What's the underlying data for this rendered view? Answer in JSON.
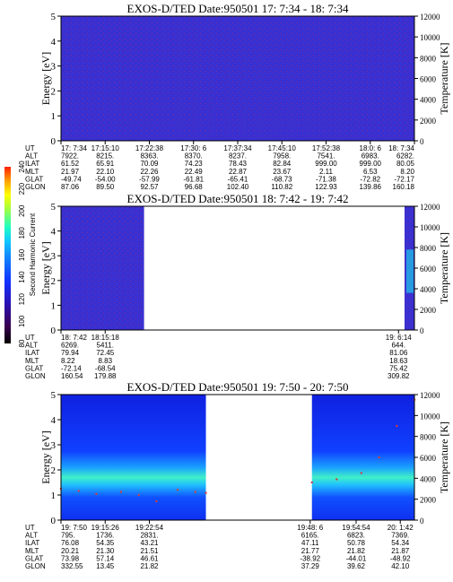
{
  "chart_data": [
    {
      "type": "heatmap",
      "title": "EXOS-D/TED   Date:950501  17: 7:34 - 18: 7:34",
      "ylabel": "Energy [eV]",
      "y2label": "Temperature [K]",
      "ylim": [
        0,
        5
      ],
      "y2lim": [
        0,
        12000
      ],
      "yticks": [
        "0",
        "1",
        "2",
        "3",
        "4",
        "5"
      ],
      "y2ticks": [
        "0",
        "2000",
        "4000",
        "6000",
        "8000",
        "10000",
        "12000"
      ],
      "segments": [
        [
          0,
          1
        ]
      ],
      "trace": [],
      "ephem_labels": [
        "UT",
        "ALT",
        "ILAT",
        "MLT",
        "GLAT",
        "GLON"
      ],
      "ephem_cols": [
        {
          "f": 0.0,
          "v": [
            "17: 7:34",
            "7922.",
            "61.52",
            "21.97",
            "-49.74",
            "87.06"
          ]
        },
        {
          "f": 0.125,
          "v": [
            "17:15:10",
            "8215.",
            "65.91",
            "22.10",
            "-54.00",
            "89.50"
          ]
        },
        {
          "f": 0.25,
          "v": [
            "17:22:38",
            "8363.",
            "70.09",
            "22.26",
            "-57.99",
            "92.57"
          ]
        },
        {
          "f": 0.375,
          "v": [
            "17:30: 6",
            "8370.",
            "74.23",
            "22.49",
            "-61.81",
            "96.68"
          ]
        },
        {
          "f": 0.5,
          "v": [
            "17:37:34",
            "8237.",
            "78.43",
            "22.87",
            "-65.41",
            "102.40"
          ]
        },
        {
          "f": 0.625,
          "v": [
            "17:45:10",
            "7958.",
            "82.84",
            "23.67",
            "-68.73",
            "110.82"
          ]
        },
        {
          "f": 0.75,
          "v": [
            "17:52:38",
            "7541.",
            "999.00",
            "2.11",
            "-71.38",
            "122.93"
          ]
        },
        {
          "f": 0.875,
          "v": [
            "18:0: 6",
            "6983.",
            "999.00",
            "6.53",
            "-72.82",
            "139.86"
          ]
        },
        {
          "f": 1.0,
          "v": [
            "18: 7:34",
            "6282.",
            "80.05",
            "8.20",
            "-72.17",
            "160.18"
          ]
        }
      ]
    },
    {
      "type": "heatmap",
      "title": "EXOS-D/TED   Date:950501  18: 7:42 - 19: 7:42",
      "ylabel": "Energy [eV]",
      "y2label": "Temperature [K]",
      "ylim": [
        0,
        5
      ],
      "y2lim": [
        0,
        12000
      ],
      "yticks": [
        "0",
        "1",
        "2",
        "3",
        "4",
        "5"
      ],
      "y2ticks": [
        "0",
        "2000",
        "4000",
        "6000",
        "8000",
        "10000",
        "12000"
      ],
      "segments": [
        [
          0,
          0.235
        ],
        [
          0.972,
          1
        ]
      ],
      "trace": [],
      "ephem_labels": [
        "UT",
        "ALT",
        "ILAT",
        "MLT",
        "GLAT",
        "GLON"
      ],
      "ephem_cols": [
        {
          "f": 0.0,
          "v": [
            "18: 7:42",
            "6269.",
            "79.94",
            "8.22",
            "-72.14",
            "160.54"
          ]
        },
        {
          "f": 0.125,
          "v": [
            "18:15:18",
            "5411.",
            "72.45",
            "8.83",
            "-68.54",
            "179.88"
          ]
        },
        {
          "f": 0.955,
          "v": [
            "19: 6:14",
            "644.",
            "81.06",
            "18.63",
            "75.42",
            "309.82"
          ]
        }
      ]
    },
    {
      "type": "heatmap",
      "title": "EXOS-D/TED   Date:950501  19: 7:50 - 20: 7:50",
      "ylabel": "Energy [eV]",
      "y2label": "Temperature [K]",
      "ylim": [
        0,
        5
      ],
      "y2lim": [
        0,
        12000
      ],
      "yticks": [
        "0",
        "1",
        "2",
        "3",
        "4",
        "5"
      ],
      "y2ticks": [
        "0",
        "2000",
        "4000",
        "6000",
        "8000",
        "10000",
        "12000"
      ],
      "segments": [
        [
          0,
          0.41
        ],
        [
          0.71,
          1
        ]
      ],
      "trace": [
        [
          0.0,
          3000
        ],
        [
          0.05,
          2800
        ],
        [
          0.1,
          2500
        ],
        [
          0.17,
          2700
        ],
        [
          0.22,
          2400
        ],
        [
          0.27,
          1800
        ],
        [
          0.33,
          2900
        ],
        [
          0.38,
          2700
        ],
        [
          0.41,
          2600
        ],
        [
          0.71,
          3600
        ],
        [
          0.78,
          3900
        ],
        [
          0.85,
          4500
        ],
        [
          0.9,
          6000
        ],
        [
          0.95,
          9000
        ],
        [
          1.0,
          11500
        ]
      ],
      "ephem_labels": [
        "UT",
        "ALT",
        "ILAT",
        "MLT",
        "GLAT",
        "GLON"
      ],
      "ephem_cols": [
        {
          "f": 0.0,
          "v": [
            "19: 7:50",
            "795.",
            "76.08",
            "20.21",
            "73.98",
            "332.55"
          ]
        },
        {
          "f": 0.125,
          "v": [
            "19:15:26",
            "1736.",
            "54.35",
            "21.30",
            "57.14",
            "13.45"
          ]
        },
        {
          "f": 0.25,
          "v": [
            "19:22:54",
            "2831.",
            "43.21",
            "21.51",
            "46.61",
            "21.82"
          ]
        },
        {
          "f": 0.705,
          "v": [
            "19:48: 6",
            "6165.",
            "47.11",
            "21.77",
            "-38.92",
            "37.29"
          ]
        },
        {
          "f": 0.835,
          "v": [
            "19:54:54",
            "6823.",
            "50.78",
            "21.82",
            "-44.01",
            "39.62"
          ]
        },
        {
          "f": 0.96,
          "v": [
            "20: 1:42",
            "7369.",
            "54.34",
            "21.87",
            "-48.92",
            "42.10"
          ]
        }
      ]
    }
  ],
  "colorbar": {
    "label": "Second Harmonic Current",
    "ticks": [
      "80",
      "100",
      "120",
      "140",
      "160",
      "180",
      "200",
      "220",
      "240"
    ],
    "colors": [
      "#000000",
      "#3a0050",
      "#2a10b0",
      "#1030ff",
      "#1080ff",
      "#10c8ff",
      "#20ffc0",
      "#a0ff40",
      "#ffff00",
      "#ffa000",
      "#ff2000"
    ]
  }
}
